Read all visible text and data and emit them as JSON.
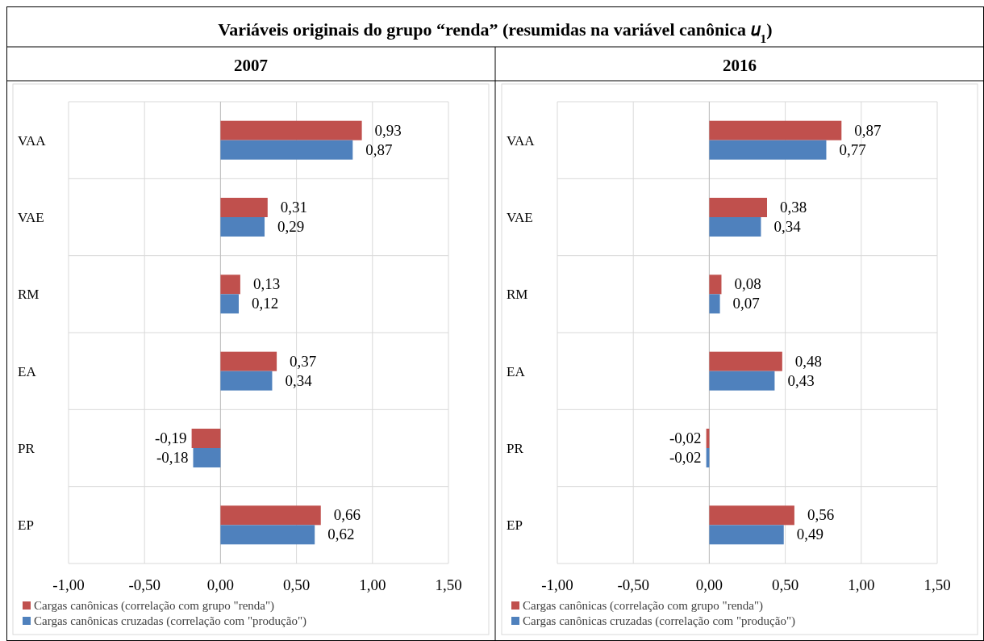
{
  "chart_data": [
    {
      "type": "bar",
      "orientation": "horizontal",
      "title": "2007",
      "annotations": [
        "Variáveis originais do grupo “renda” (resumidas na variável canônica 𝑢$_{1}$)"
      ],
      "categories": [
        "VAA",
        "VAE",
        "RM",
        "EA",
        "PR",
        "EP"
      ],
      "series": [
        {
          "name": "Cargas canônicas (correlação com grupo \"renda\")",
          "color": "#c0504d",
          "values": [
            0.93,
            0.31,
            0.13,
            0.37,
            -0.19,
            0.66
          ],
          "value_labels": [
            "0,93",
            "0,31",
            "0,13",
            "0,37",
            "-0,19",
            "0,66"
          ]
        },
        {
          "name": "Cargas canônicas cruzadas (correlação com  \"produção\")",
          "color": "#4f81bd",
          "values": [
            0.87,
            0.29,
            0.12,
            0.34,
            -0.18,
            0.62
          ],
          "value_labels": [
            "0,87",
            "0,29",
            "0,12",
            "0,34",
            "-0,18",
            "0,62"
          ]
        }
      ],
      "xlim": [
        -1,
        1.5
      ],
      "xticks": [
        {
          "value": -1,
          "label": "-1,00"
        },
        {
          "value": -0.5,
          "label": "-0,50"
        },
        {
          "value": 0,
          "label": "0,00"
        },
        {
          "value": 0.5,
          "label": "0,50"
        },
        {
          "value": 1,
          "label": "1,00"
        },
        {
          "value": 1.5,
          "label": "1,50"
        }
      ],
      "grid": true,
      "legend": "bottom"
    },
    {
      "type": "bar",
      "orientation": "horizontal",
      "title": "2016",
      "categories": [
        "VAA",
        "VAE",
        "RM",
        "EA",
        "PR",
        "EP"
      ],
      "series": [
        {
          "name": "Cargas canônicas (correlação com grupo \"renda\")",
          "color": "#c0504d",
          "values": [
            0.87,
            0.38,
            0.08,
            0.48,
            -0.02,
            0.56
          ],
          "value_labels": [
            "0,87",
            "0,38",
            "0,08",
            "0,48",
            "-0,02",
            "0,56"
          ]
        },
        {
          "name": "Cargas canônicas cruzadas (correlação com \"produção\")",
          "color": "#4f81bd",
          "values": [
            0.77,
            0.34,
            0.07,
            0.43,
            -0.02,
            0.49
          ],
          "value_labels": [
            "0,77",
            "0,34",
            "0,07",
            "0,43",
            "-0,02",
            "0,49"
          ]
        }
      ],
      "xlim": [
        -1,
        1.5
      ],
      "xticks": [
        {
          "value": -1,
          "label": "-1,00"
        },
        {
          "value": -0.5,
          "label": "-0,50"
        },
        {
          "value": 0,
          "label": "0,00"
        },
        {
          "value": 0.5,
          "label": "0,50"
        },
        {
          "value": 1,
          "label": "1,00"
        },
        {
          "value": 1.5,
          "label": "1,50"
        }
      ],
      "grid": true,
      "legend": "bottom"
    }
  ]
}
